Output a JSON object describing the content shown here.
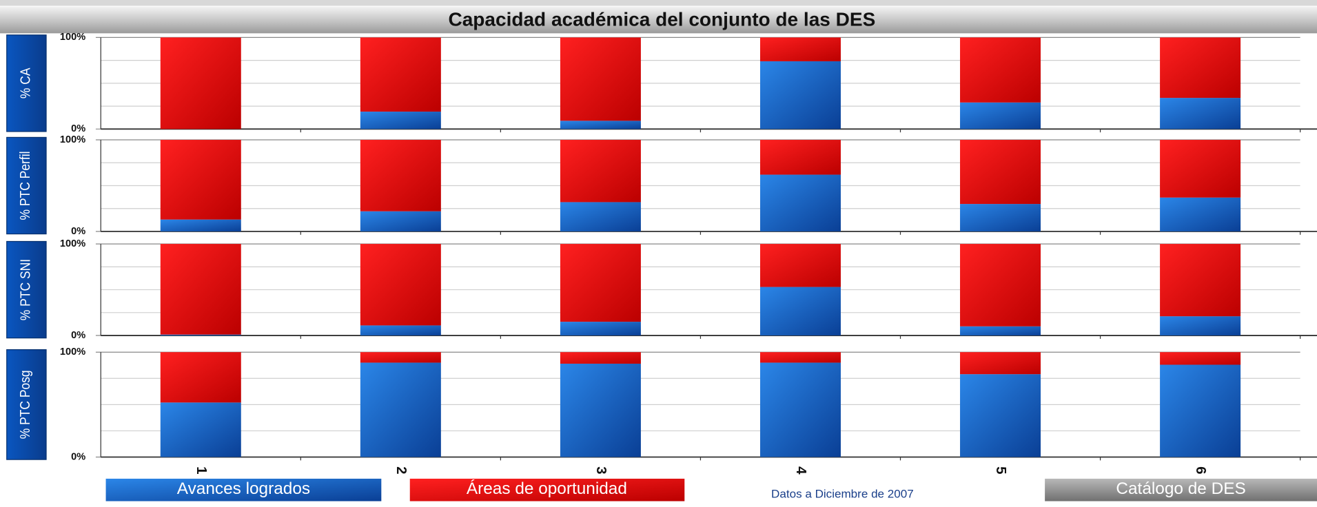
{
  "title": "Capacidad académica del conjunto de las DES",
  "note": "Datos a Diciembre de 2007",
  "button": "Catálogo de DES",
  "chart_data": {
    "type": "bar",
    "stacked": true,
    "categories": [
      "1",
      "2",
      "3",
      "4",
      "5",
      "6"
    ],
    "ylim": [
      0,
      100
    ],
    "yticks": [
      {
        "value": 0,
        "label": "0%"
      },
      {
        "value": 100,
        "label": "100%"
      }
    ],
    "grid": [
      25,
      50,
      75
    ],
    "series": [
      {
        "name": "Avances logrados",
        "color": "#0b5cc0"
      },
      {
        "name": "Áreas de oportunidad",
        "color": "#ee0000"
      }
    ],
    "panels": [
      {
        "label": "% CA",
        "values": [
          [
            0,
            19,
            9,
            74,
            29,
            34
          ],
          [
            100,
            81,
            91,
            26,
            71,
            66
          ]
        ]
      },
      {
        "label": "% PTC Perfil",
        "values": [
          [
            13,
            22,
            32,
            62,
            30,
            37
          ],
          [
            87,
            78,
            68,
            38,
            70,
            63
          ]
        ]
      },
      {
        "label": "% PTC SNI",
        "values": [
          [
            1,
            11,
            15,
            53,
            10,
            21
          ],
          [
            99,
            89,
            85,
            47,
            90,
            79
          ]
        ]
      },
      {
        "label": "% PTC Posg",
        "values": [
          [
            52,
            90,
            89,
            90,
            79,
            88
          ],
          [
            48,
            10,
            11,
            10,
            21,
            12
          ]
        ]
      }
    ]
  }
}
